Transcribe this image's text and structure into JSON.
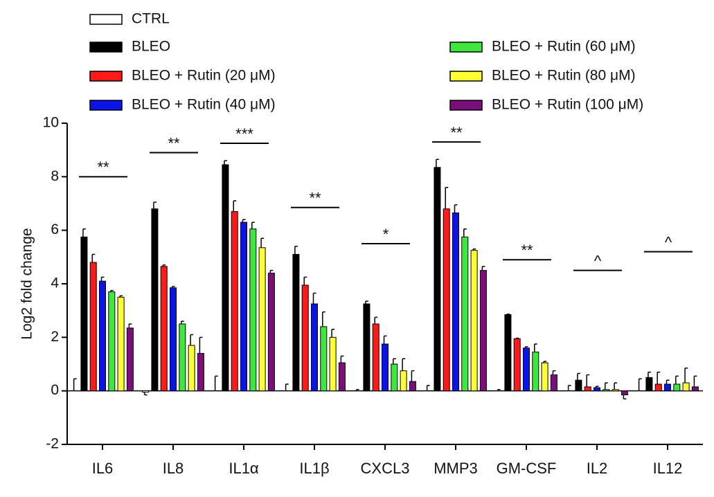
{
  "chart_data": {
    "type": "bar",
    "y_label": "Log2 fold change",
    "categories": [
      "IL6",
      "IL8",
      "IL1α",
      "IL1β",
      "CXCL3",
      "MMP3",
      "GM-CSF",
      "IL2",
      "IL12"
    ],
    "ylim": [
      -2,
      10
    ],
    "yticks": [
      -2,
      0,
      2,
      4,
      6,
      8,
      10
    ],
    "legend": "top",
    "series": [
      {
        "name": "CTRL",
        "color": "#ffffff",
        "values": [
          0,
          -0.05,
          0,
          0,
          0,
          0,
          0,
          0,
          0
        ],
        "errors": [
          0.45,
          0.1,
          0.55,
          0.25,
          0.05,
          0.2,
          0.05,
          0.2,
          0.45
        ]
      },
      {
        "name": "BLEO",
        "color": "#000000",
        "values": [
          5.75,
          6.8,
          8.45,
          5.1,
          3.25,
          8.35,
          2.85,
          0.4,
          0.5
        ],
        "errors": [
          0.3,
          0.25,
          0.15,
          0.3,
          0.1,
          0.3,
          0.02,
          0.25,
          0.2
        ]
      },
      {
        "name": "BLEO + Rutin (20 μM)",
        "color": "#ff1a1a",
        "values": [
          4.8,
          4.65,
          6.7,
          3.95,
          2.5,
          6.8,
          1.95,
          0.15,
          0.25
        ],
        "errors": [
          0.3,
          0.05,
          0.4,
          0.3,
          0.25,
          0.8,
          0.02,
          0.45,
          0.45
        ]
      },
      {
        "name": "BLEO + Rutin (40 μM)",
        "color": "#0a14e6",
        "values": [
          4.1,
          3.85,
          6.3,
          3.25,
          1.75,
          6.65,
          1.6,
          0.12,
          0.25
        ],
        "errors": [
          0.15,
          0.05,
          0.1,
          0.4,
          0.3,
          0.3,
          0.05,
          0.05,
          0.15
        ]
      },
      {
        "name": "BLEO + Rutin (60 μM)",
        "color": "#3ee63e",
        "values": [
          3.7,
          2.5,
          6.05,
          2.4,
          1.0,
          5.75,
          1.45,
          0.05,
          0.25
        ],
        "errors": [
          0.05,
          0.1,
          0.25,
          0.55,
          0.2,
          0.3,
          0.3,
          0.25,
          0.3
        ]
      },
      {
        "name": "BLEO + Rutin (80 μM)",
        "color": "#ffff33",
        "values": [
          3.5,
          1.7,
          5.35,
          2.0,
          0.75,
          5.25,
          1.05,
          0.05,
          0.3
        ],
        "errors": [
          0.05,
          0.4,
          0.35,
          0.3,
          0.45,
          0.05,
          0.05,
          0.25,
          0.55
        ]
      },
      {
        "name": "BLEO + Rutin (100 μM)",
        "color": "#7a0f7a",
        "values": [
          2.35,
          1.4,
          4.4,
          1.05,
          0.35,
          4.5,
          0.6,
          -0.15,
          0.15
        ],
        "errors": [
          0.15,
          0.6,
          0.1,
          0.25,
          0.4,
          0.15,
          0.15,
          0.15,
          0.4
        ]
      }
    ],
    "annotations": [
      {
        "text": "**",
        "y": 8.0
      },
      {
        "text": "**",
        "y": 8.9
      },
      {
        "text": "***",
        "y": 9.25
      },
      {
        "text": "**",
        "y": 6.85
      },
      {
        "text": "*",
        "y": 5.5
      },
      {
        "text": "**",
        "y": 9.3
      },
      {
        "text": "**",
        "y": 4.9
      },
      {
        "text": "^",
        "y": 4.5
      },
      {
        "text": "^",
        "y": 5.2
      }
    ]
  }
}
